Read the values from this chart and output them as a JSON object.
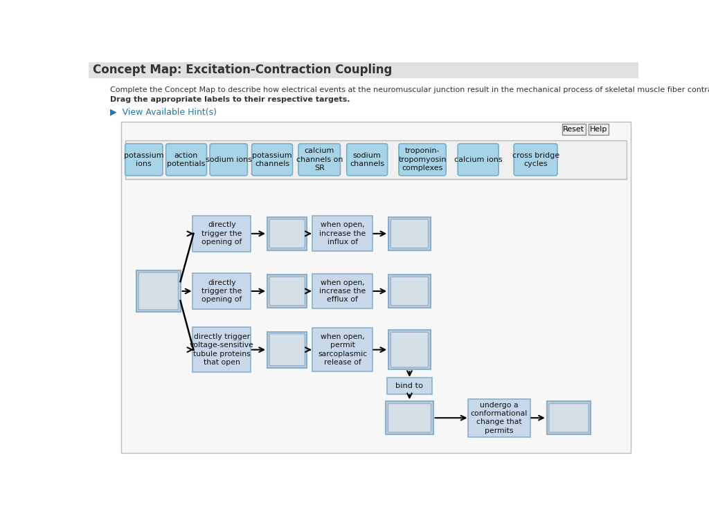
{
  "title": "Concept Map: Excitation-Contraction Coupling",
  "subtitle": "Complete the Concept Map to describe how electrical events at the neuromuscular junction result in the mechanical process of skeletal muscle fiber contraction",
  "subtitle2": "Drag the appropriate labels to their respective targets.",
  "hint_text": "▶  View Available Hint(s)",
  "bg_color": "#ffffff",
  "panel_facecolor": "#f7f7f7",
  "label_area_color": "#f0f0f0",
  "label_bg": "#a8d4e8",
  "label_border": "#7aaccc",
  "process_box_bg": "#c8d8eb",
  "process_box_border": "#8aafc8",
  "empty_box_bg": "#c0cfe0",
  "empty_box_border": "#8aafc8",
  "title_bar_color": "#e0e0e0",
  "title_color": "#333333",
  "subtitle_color": "#333333",
  "hint_color": "#1a7ab5",
  "labels": [
    "potassium\nions",
    "action\npotentials",
    "sodium ions",
    "potassium\nchannels",
    "calcium\nchannels on\nSR",
    "sodium\nchannels",
    "troponin-\ntropomyosin\ncomplexes",
    "calcium ions",
    "cross bridge\ncycles"
  ],
  "row1_process": "directly\ntrigger the\nopening of",
  "row2_process": "directly\ntrigger the\nopening of",
  "row3_process": "directly trigger\nvoltage-sensitive\ntubule proteins\nthat open",
  "row1_connector": "when open,\nincrease the\ninflux of",
  "row2_connector": "when open,\nincrease the\nefflux of",
  "row3_connector": "when open,\npermit\nsarcoplasmic\nrelease of",
  "bind_to": "bind to",
  "conform_text": "undergo a\nconformational\nchange that\npermits"
}
